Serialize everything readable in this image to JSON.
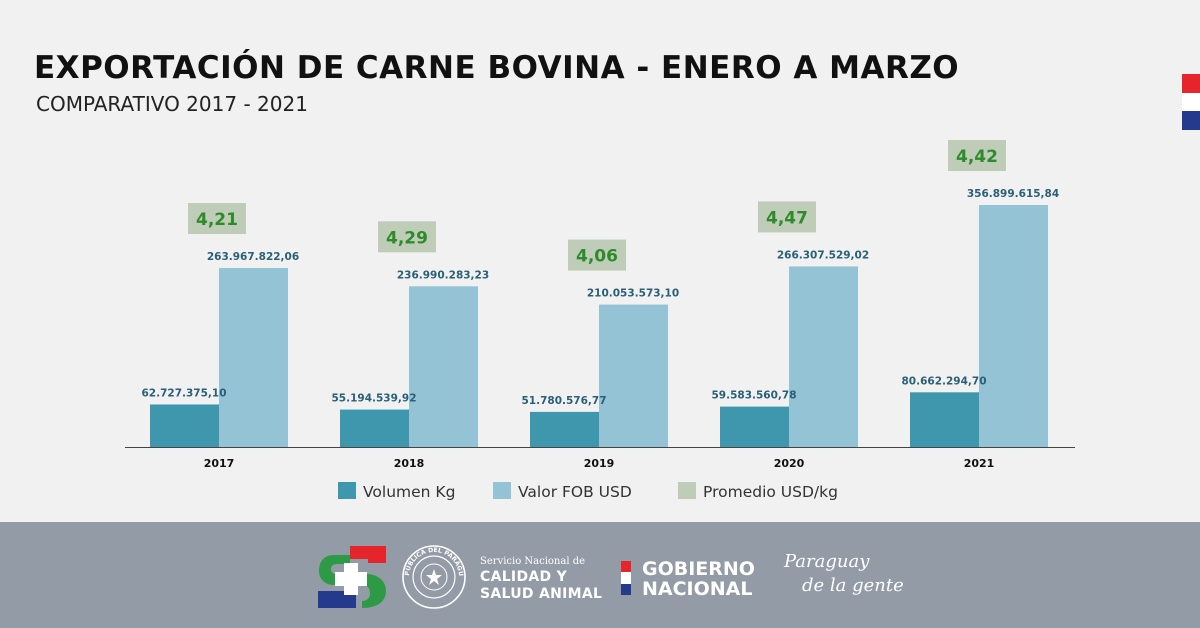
{
  "header": {
    "title": "Exportación de carne bovina - Enero a Marzo",
    "subtitle": "COMPARATIVO 2017 - 2021"
  },
  "colors": {
    "volumen": "#3f97ae",
    "valor": "#94c3d6",
    "promedio_box": "#bfccb8",
    "promedio_text": "#2e8b2a",
    "label_text": "#2a5f78",
    "flag_red": "#e5252b",
    "flag_white": "#ffffff",
    "flag_blue": "#253a8c"
  },
  "chart_data": {
    "type": "bar",
    "title": "Exportación de carne bovina - Enero a Marzo",
    "subtitle": "COMPARATIVO 2017 - 2021",
    "categories": [
      "2017",
      "2018",
      "2019",
      "2020",
      "2021"
    ],
    "series": [
      {
        "name": "Volumen Kg",
        "values": [
          62727375.1,
          55194539.92,
          51780576.77,
          59583560.78,
          80662294.7
        ],
        "labels": [
          "62.727.375,10",
          "55.194.539,92",
          "51.780.576,77",
          "59.583.560,78",
          "80.662.294,70"
        ]
      },
      {
        "name": "Valor FOB USD",
        "values": [
          263967822.06,
          236990283.23,
          210053573.1,
          266307529.02,
          356899615.84
        ],
        "labels": [
          "263.967.822,06",
          "236.990.283,23",
          "210.053.573,10",
          "266.307.529,02",
          "356.899.615,84"
        ]
      },
      {
        "name": "Promedio USD/kg",
        "values": [
          4.21,
          4.29,
          4.06,
          4.47,
          4.42
        ],
        "labels": [
          "4,21",
          "4,29",
          "4,06",
          "4,47",
          "4,42"
        ]
      }
    ],
    "ylim": [
      0,
      360000000
    ],
    "legend_position": "bottom",
    "grid": false
  },
  "footer": {
    "senacsa_small": "Servicio Nacional de",
    "senacsa_line1": "CALIDAD Y",
    "senacsa_line2": "SALUD ANIMAL",
    "seal_text": "REPÚBLICA DEL PARAGUAY",
    "gobierno_line1": "GOBIERNO",
    "gobierno_line2": "NACIONAL",
    "slogan_line1": "Paraguay",
    "slogan_line2": "de la gente"
  }
}
